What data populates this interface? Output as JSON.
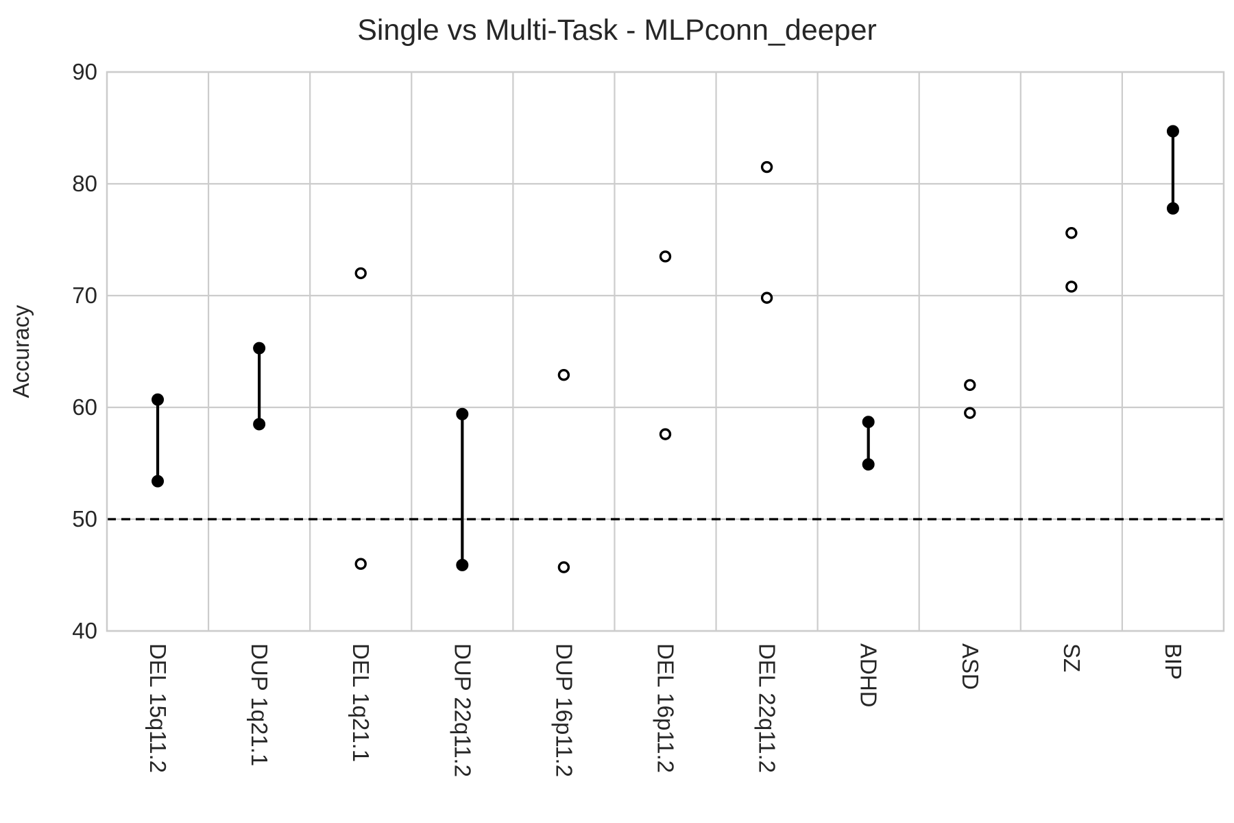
{
  "chart_data": {
    "type": "scatter",
    "title": "Single vs Multi-Task - MLPconn_deeper",
    "xlabel": "",
    "ylabel": "Accuracy",
    "ylim": [
      40,
      90
    ],
    "yticks": [
      40,
      50,
      60,
      70,
      80,
      90
    ],
    "grid": true,
    "reference_line": {
      "y": 50,
      "style": "dashed",
      "color": "#000000"
    },
    "categories": [
      "DEL 15q11.2",
      "DUP 1q21.1",
      "DEL 1q21.1",
      "DUP 22q11.2",
      "DUP 16p11.2",
      "DEL 16p11.2",
      "DEL 22q11.2",
      "ADHD",
      "ASD",
      "SZ",
      "BIP"
    ],
    "series": [
      {
        "values": [
          60.7,
          65.3,
          72.0,
          59.4,
          62.9,
          73.5,
          81.5,
          58.7,
          62.0,
          75.6,
          84.7
        ]
      },
      {
        "values": [
          53.4,
          58.5,
          46.0,
          45.9,
          45.7,
          57.6,
          69.8,
          54.9,
          59.5,
          70.8,
          77.8
        ]
      }
    ],
    "connected": [
      true,
      true,
      false,
      true,
      false,
      false,
      false,
      true,
      false,
      false,
      true
    ],
    "colors": {
      "marker": "#000000",
      "connector": "#000000",
      "grid": "#cccccc",
      "text": "#262626"
    }
  }
}
